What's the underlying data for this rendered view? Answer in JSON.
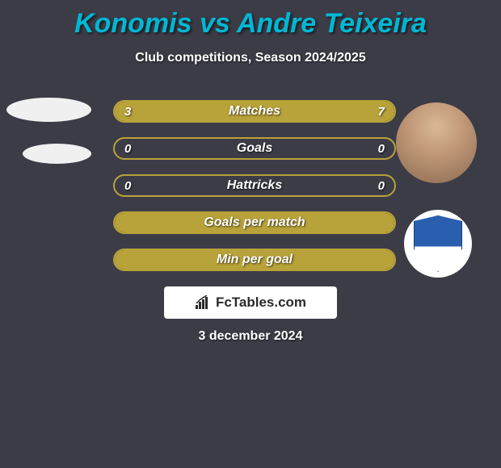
{
  "title": {
    "player1": "Konomis",
    "vs": "vs",
    "player2": "Andre Teixeira",
    "color": "#00b8d4"
  },
  "subtitle": "Club competitions, Season 2024/2025",
  "bars": {
    "track_border": "#b8a23a",
    "track_bg": "#3c3c47",
    "fill_color": "#b8a23a",
    "rows": [
      {
        "label": "Matches",
        "left_val": "3",
        "right_val": "7",
        "left_pct": 30,
        "right_pct": 70,
        "show_vals": true
      },
      {
        "label": "Goals",
        "left_val": "0",
        "right_val": "0",
        "left_pct": 0,
        "right_pct": 0,
        "show_vals": true
      },
      {
        "label": "Hattricks",
        "left_val": "0",
        "right_val": "0",
        "left_pct": 0,
        "right_pct": 0,
        "show_vals": true
      },
      {
        "label": "Goals per match",
        "left_val": "",
        "right_val": "",
        "left_pct": 100,
        "right_pct": 0,
        "show_vals": false
      },
      {
        "label": "Min per goal",
        "left_val": "",
        "right_val": "",
        "left_pct": 100,
        "right_pct": 0,
        "show_vals": false
      }
    ]
  },
  "brand": "FcTables.com",
  "date": "3 december 2024",
  "colors": {
    "background": "#3c3c47",
    "text_white": "#ffffff"
  }
}
